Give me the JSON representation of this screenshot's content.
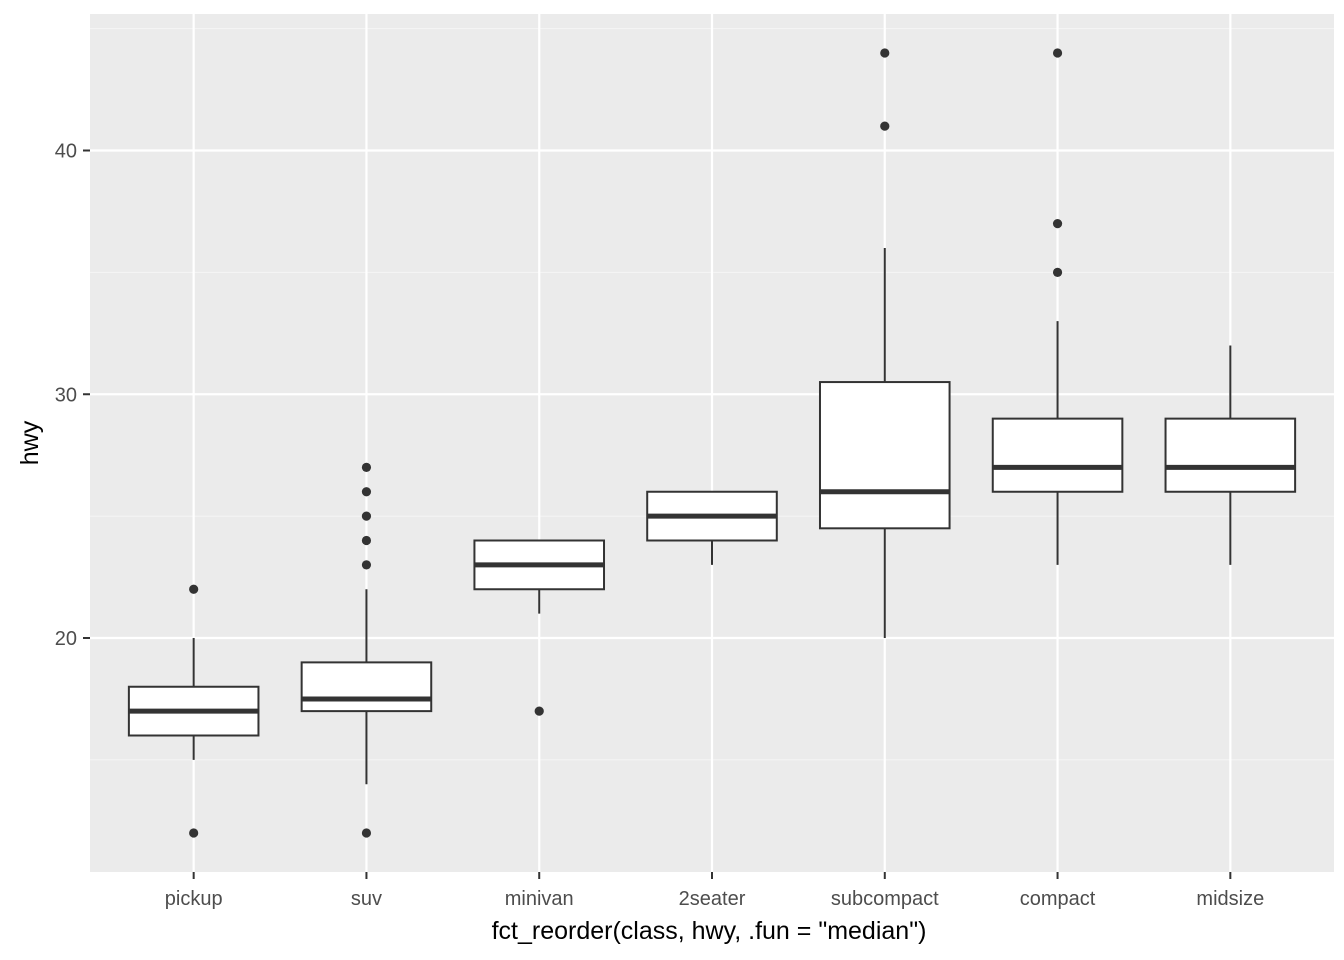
{
  "chart_data": {
    "type": "boxplot",
    "xlabel": "fct_reorder(class, hwy, .fun = \"median\")",
    "ylabel": "hwy",
    "ylim": [
      10.4,
      45.6
    ],
    "yticks": [
      20,
      30,
      40
    ],
    "grid": true,
    "categories": [
      "pickup",
      "suv",
      "minivan",
      "2seater",
      "subcompact",
      "compact",
      "midsize"
    ],
    "boxes": [
      {
        "category": "pickup",
        "whisker_low": 15,
        "q1": 16,
        "median": 17,
        "q3": 18,
        "whisker_high": 20,
        "outliers": [
          12,
          22
        ]
      },
      {
        "category": "suv",
        "whisker_low": 14,
        "q1": 17,
        "median": 17.5,
        "q3": 19,
        "whisker_high": 22,
        "outliers": [
          12,
          23,
          24,
          25,
          26,
          27
        ]
      },
      {
        "category": "minivan",
        "whisker_low": 21,
        "q1": 22,
        "median": 23,
        "q3": 24,
        "whisker_high": 24,
        "outliers": [
          17
        ]
      },
      {
        "category": "2seater",
        "whisker_low": 23,
        "q1": 24,
        "median": 25,
        "q3": 26,
        "whisker_high": 26,
        "outliers": []
      },
      {
        "category": "subcompact",
        "whisker_low": 20,
        "q1": 24.5,
        "median": 26,
        "q3": 30.5,
        "whisker_high": 36,
        "outliers": [
          41,
          44
        ]
      },
      {
        "category": "compact",
        "whisker_low": 23,
        "q1": 26,
        "median": 27,
        "q3": 29,
        "whisker_high": 33,
        "outliers": [
          35,
          37,
          44
        ]
      },
      {
        "category": "midsize",
        "whisker_low": 23,
        "q1": 26,
        "median": 27,
        "q3": 29,
        "whisker_high": 32,
        "outliers": []
      }
    ],
    "colors": {
      "panel_background": "#ebebeb",
      "grid_major": "#ffffff",
      "grid_minor": "#f5f5f5",
      "box_fill": "#ffffff",
      "box_line": "#333333",
      "tick_text": "#4d4d4d",
      "title_text": "#000000"
    }
  }
}
